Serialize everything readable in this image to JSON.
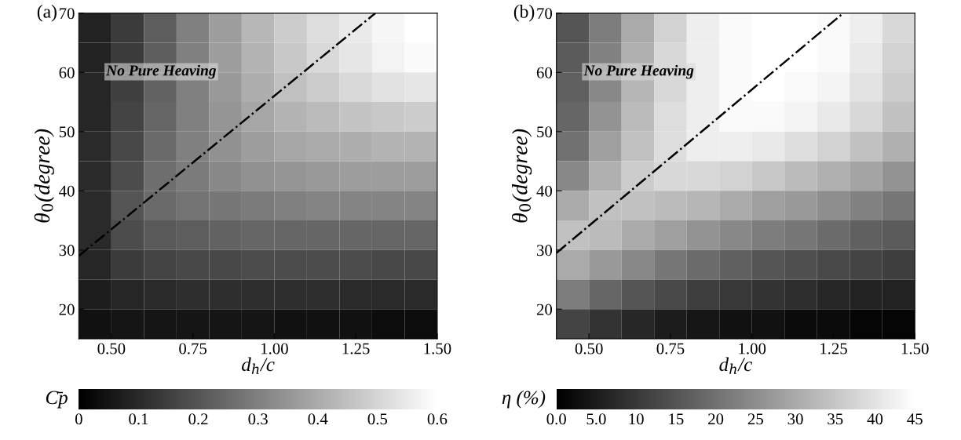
{
  "chart_data": [
    {
      "type": "heatmap",
      "annotations": [
        "(a)",
        "No Pure Heaving"
      ],
      "xlabel": "d$_{h}$/c",
      "ylabel": "θ$_{0}$(degree)",
      "clabel": "C̄p",
      "xlim": [
        0.4,
        1.5
      ],
      "ylim": [
        15,
        70
      ],
      "xticks": [
        {
          "value": 0.5,
          "label": "0.50"
        },
        {
          "value": 0.75,
          "label": "0.75"
        },
        {
          "value": 1.0,
          "label": "1.00"
        },
        {
          "value": 1.25,
          "label": "1.25"
        },
        {
          "value": 1.5,
          "label": "1.50"
        }
      ],
      "yticks": [
        20,
        30,
        40,
        50,
        60,
        70
      ],
      "clim": [
        0,
        0.6
      ],
      "cticks": [
        0,
        0.1,
        0.2,
        0.3,
        0.4,
        0.5,
        0.6
      ],
      "cells": [
        [
          0.08,
          0.14,
          0.22,
          0.3,
          0.37,
          0.43,
          0.48,
          0.52,
          0.55,
          0.58,
          0.6
        ],
        [
          0.08,
          0.14,
          0.22,
          0.3,
          0.37,
          0.42,
          0.47,
          0.51,
          0.54,
          0.57,
          0.59
        ],
        [
          0.09,
          0.15,
          0.23,
          0.3,
          0.36,
          0.41,
          0.45,
          0.48,
          0.51,
          0.53,
          0.54
        ],
        [
          0.09,
          0.16,
          0.24,
          0.3,
          0.35,
          0.39,
          0.42,
          0.44,
          0.46,
          0.47,
          0.48
        ],
        [
          0.1,
          0.17,
          0.25,
          0.3,
          0.34,
          0.37,
          0.39,
          0.4,
          0.41,
          0.42,
          0.42
        ],
        [
          0.1,
          0.18,
          0.26,
          0.29,
          0.32,
          0.34,
          0.35,
          0.36,
          0.37,
          0.37,
          0.37
        ],
        [
          0.1,
          0.2,
          0.25,
          0.27,
          0.28,
          0.29,
          0.3,
          0.31,
          0.31,
          0.31,
          0.31
        ],
        [
          0.1,
          0.18,
          0.21,
          0.22,
          0.23,
          0.24,
          0.24,
          0.24,
          0.24,
          0.24,
          0.24
        ],
        [
          0.09,
          0.14,
          0.16,
          0.17,
          0.17,
          0.18,
          0.18,
          0.18,
          0.18,
          0.17,
          0.17
        ],
        [
          0.07,
          0.09,
          0.1,
          0.11,
          0.11,
          0.11,
          0.11,
          0.11,
          0.1,
          0.1,
          0.1
        ],
        [
          0.04,
          0.05,
          0.05,
          0.05,
          0.05,
          0.05,
          0.04,
          0.04,
          0.04,
          0.03,
          0.03
        ]
      ],
      "series": [
        {
          "type": "line",
          "color": "#000000",
          "line_style": "dashdot",
          "x": [
            0.4,
            1.31
          ],
          "values": [
            29,
            70
          ]
        }
      ]
    },
    {
      "type": "heatmap",
      "annotations": [
        "(b)",
        "No Pure Heaving"
      ],
      "xlabel": "d$_{h}$/c",
      "ylabel": "θ$_{0}$(degree)",
      "clabel": "η (%)",
      "xlim": [
        0.4,
        1.5
      ],
      "ylim": [
        15,
        70
      ],
      "xticks": [
        {
          "value": 0.5,
          "label": "0.50"
        },
        {
          "value": 0.75,
          "label": "0.75"
        },
        {
          "value": 1.0,
          "label": "1.00"
        },
        {
          "value": 1.25,
          "label": "1.25"
        },
        {
          "value": 1.5,
          "label": "1.50"
        }
      ],
      "yticks": [
        20,
        30,
        40,
        50,
        60,
        70
      ],
      "clim": [
        0,
        45
      ],
      "cticks": [
        {
          "value": 0,
          "label": "0.0"
        },
        {
          "value": 5,
          "label": "5.0"
        },
        10,
        15,
        20,
        25,
        30,
        35,
        40,
        45
      ],
      "cells": [
        [
          15,
          22,
          30,
          37,
          42,
          44,
          45,
          45,
          44,
          42,
          38
        ],
        [
          16,
          23,
          31,
          38,
          42,
          44,
          45,
          45,
          44,
          41,
          37
        ],
        [
          17,
          24,
          32,
          38,
          42,
          44,
          45,
          44,
          43,
          40,
          36
        ],
        [
          18,
          26,
          33,
          39,
          42,
          44,
          44,
          43,
          41,
          38,
          34
        ],
        [
          20,
          28,
          34,
          39,
          42,
          42,
          41,
          39,
          37,
          34,
          31
        ],
        [
          24,
          31,
          36,
          38,
          38,
          37,
          35,
          33,
          31,
          29,
          26
        ],
        [
          30,
          34,
          34,
          33,
          32,
          30,
          28,
          27,
          25,
          23,
          21
        ],
        [
          34,
          33,
          30,
          28,
          26,
          24,
          22,
          21,
          19,
          17,
          16
        ],
        [
          30,
          27,
          24,
          21,
          19,
          17,
          15,
          14,
          13,
          12,
          11
        ],
        [
          22,
          18,
          15,
          13,
          11,
          10,
          9,
          8,
          7,
          6,
          6
        ],
        [
          12,
          9,
          7,
          5,
          4,
          3,
          3,
          2,
          2,
          1,
          1
        ]
      ],
      "series": [
        {
          "type": "line",
          "color": "#000000",
          "line_style": "dashdot",
          "x": [
            0.4,
            1.28
          ],
          "values": [
            29.5,
            70
          ]
        }
      ]
    }
  ]
}
